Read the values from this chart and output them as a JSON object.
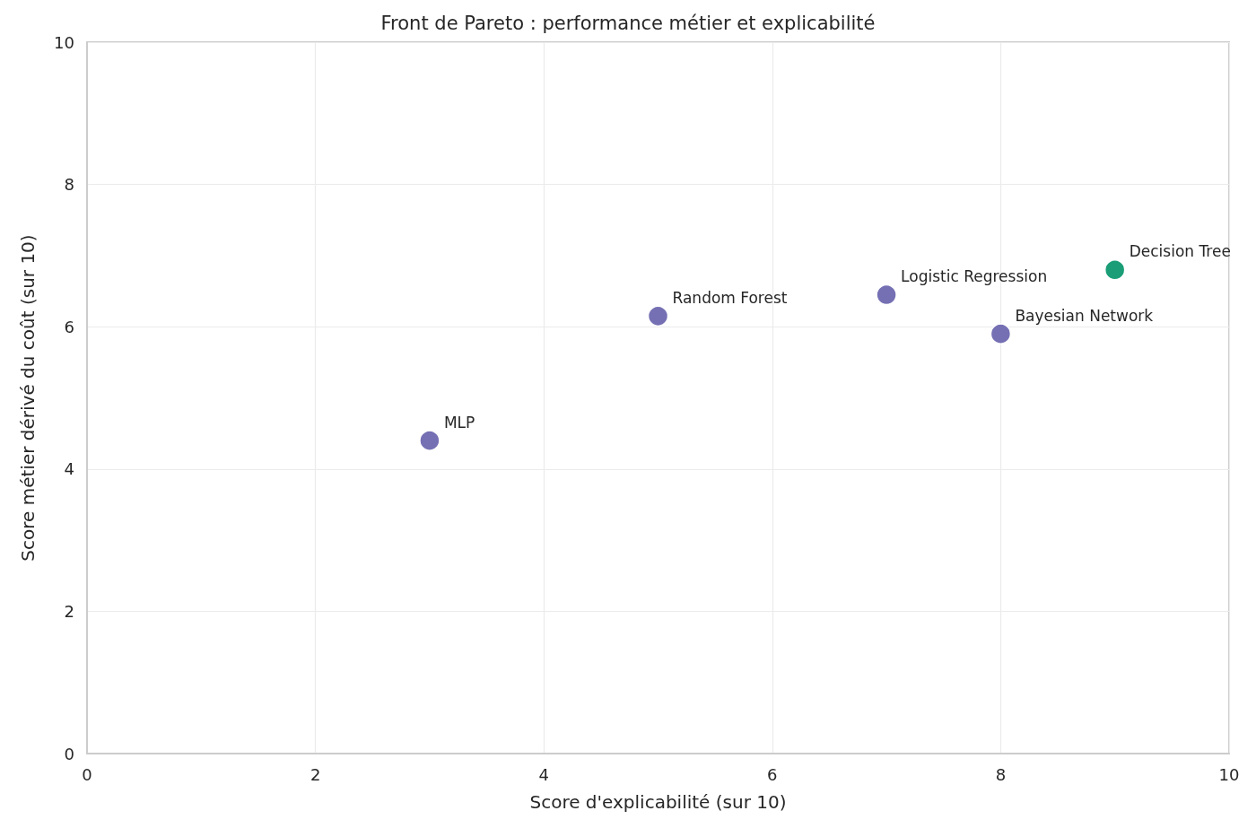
{
  "chart_data": {
    "type": "scatter",
    "title": "Front de Pareto : performance métier et explicabilité",
    "xlabel": "Score d'explicabilité (sur 10)",
    "ylabel": "Score métier dérivé du coût (sur 10)",
    "x": [
      3,
      5,
      7,
      8,
      9
    ],
    "values": [
      4.4,
      6.15,
      6.45,
      5.9,
      6.8
    ],
    "colors": [
      "#7570b3",
      "#7570b3",
      "#7570b3",
      "#7570b3",
      "#1b9e77"
    ],
    "xlim": [
      0,
      10
    ],
    "ylim": [
      0,
      10
    ],
    "xticks": [
      0,
      2,
      4,
      6,
      8,
      10
    ],
    "yticks": [
      0,
      2,
      4,
      6,
      8,
      10
    ],
    "grid": true,
    "marker": "circle",
    "annotations": [
      {
        "text": "MLP",
        "x": 3,
        "y": 4.4
      },
      {
        "text": "Random Forest",
        "x": 5,
        "y": 6.15
      },
      {
        "text": "Logistic Regression",
        "x": 7,
        "y": 6.45
      },
      {
        "text": "Bayesian Network",
        "x": 8,
        "y": 5.9
      },
      {
        "text": "Decision Tree",
        "x": 9,
        "y": 6.8
      }
    ]
  }
}
